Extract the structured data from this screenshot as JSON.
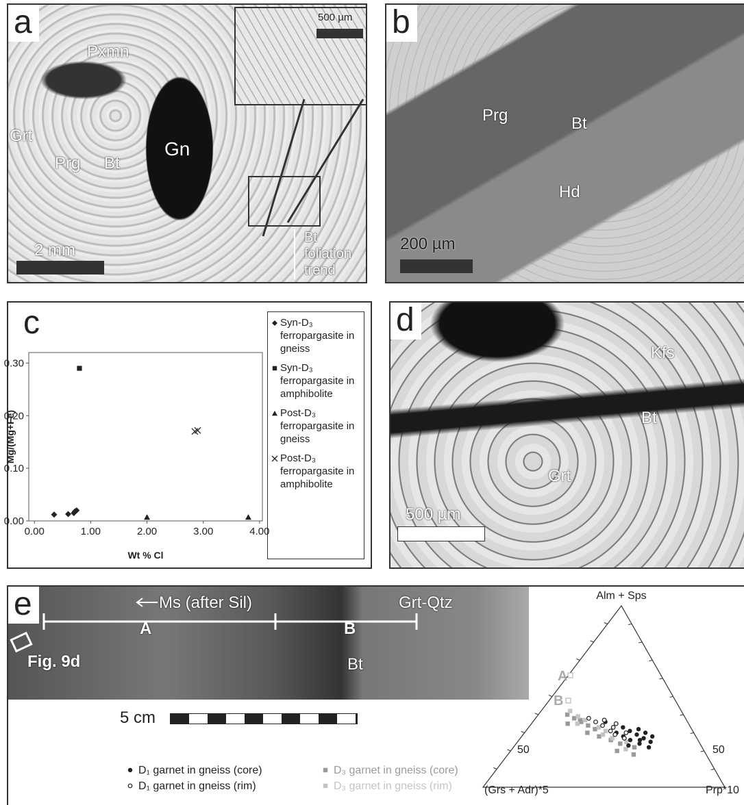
{
  "panels": {
    "a": {
      "letter": "a",
      "labels": [
        "Pxmn",
        "Grt",
        "Prg",
        "Bt",
        "Gn",
        "500 µm",
        "2 mm",
        "Bt foliation trend"
      ]
    },
    "b": {
      "letter": "b",
      "labels": [
        "Prg",
        "Bt",
        "Hd",
        "200 µm"
      ]
    },
    "c": {
      "letter": "c"
    },
    "d": {
      "letter": "d",
      "labels": [
        "Kfs",
        "Bt",
        "Grt",
        "500 µm"
      ]
    },
    "e": {
      "letter": "e",
      "labels": [
        "Ms (after Sil)",
        "A",
        "B",
        "Grt-Qtz",
        "Fig. 9d",
        "Bt",
        "5 cm"
      ]
    }
  },
  "chart_data": [
    {
      "type": "scatter",
      "x_label": "Wt % Cl",
      "y_label": "Mg/(Mg+Fe)",
      "xlim": [
        -0.1,
        4.05
      ],
      "ylim": [
        0,
        0.32
      ],
      "xticks": [
        {
          "value": 0,
          "label": "0.00"
        },
        {
          "value": 1,
          "label": "1.00"
        },
        {
          "value": 2,
          "label": "2.00"
        },
        {
          "value": 3,
          "label": "3.00"
        },
        {
          "value": 4,
          "label": "4.00"
        }
      ],
      "yticks": [
        {
          "value": 0,
          "label": "0.00"
        },
        {
          "value": 0.1,
          "label": "0.10"
        },
        {
          "value": 0.2,
          "label": "0.20"
        },
        {
          "value": 0.3,
          "label": "0.30"
        }
      ],
      "series": [
        {
          "name": "Syn-D₃ ferropargasite in gneiss",
          "marker": "diamond",
          "color": "#222222",
          "x": [
            0.35,
            0.6,
            0.7,
            0.75,
            0.72
          ],
          "values": [
            0.012,
            0.013,
            0.015,
            0.02,
            0.018
          ]
        },
        {
          "name": "Syn-D₃ ferropargasite in amphibolite",
          "marker": "square",
          "color": "#222222",
          "x": [
            0.8
          ],
          "values": [
            0.29
          ]
        },
        {
          "name": "Post-D₃ ferropargasite in gneiss",
          "marker": "triangle",
          "color": "#222222",
          "x": [
            2.0,
            3.8
          ],
          "values": [
            0.007,
            0.007
          ]
        },
        {
          "name": "Post-D₃ ferropargasite in amphibolite",
          "marker": "cross",
          "color": "#222222",
          "x": [
            2.85,
            2.9
          ],
          "values": [
            0.17,
            0.172
          ]
        }
      ]
    },
    {
      "type": "ternary",
      "top_label": "Alm + Sps",
      "left_label": "(Grs + Adr)*5",
      "right_label": "Prp*10",
      "tick_labels": [
        "50",
        "50"
      ],
      "point_labels": [
        "A",
        "B"
      ],
      "series": [
        {
          "name": "D₁ garnet in gneiss (core)",
          "marker": "circle",
          "color": "#222222",
          "top": [
            35,
            33,
            31,
            29,
            27,
            25,
            30,
            28,
            26,
            24,
            22,
            32,
            34,
            28,
            23,
            36,
            30,
            26
          ],
          "left": [
            30,
            28,
            26,
            24,
            22,
            20,
            32,
            30,
            28,
            25,
            22,
            22,
            36,
            18,
            30,
            34,
            20,
            24
          ]
        },
        {
          "name": "D₁ garnet in gneiss (rim)",
          "marker": "open-circle",
          "color": "#222222",
          "top": [
            38,
            36,
            34,
            33,
            31,
            29,
            37,
            35,
            27,
            30
          ],
          "left": [
            40,
            38,
            36,
            32,
            34,
            33,
            34,
            30,
            30,
            28
          ]
        },
        {
          "name": "D₃ garnet in gneiss (core)",
          "marker": "square",
          "color": "#9a9a9a",
          "top": [
            40,
            38,
            36,
            34,
            32,
            30,
            28,
            26,
            24,
            20,
            18,
            35,
            37,
            22
          ],
          "left": [
            48,
            46,
            44,
            42,
            40,
            44,
            40,
            36,
            33,
            36,
            30,
            50,
            44,
            28
          ]
        },
        {
          "name": "D₃ garnet in gneiss (rim)",
          "marker": "square",
          "color": "#c4c4c4",
          "top": [
            42,
            39,
            37,
            35,
            33,
            31,
            27,
            25,
            21,
            29
          ],
          "left": [
            46,
            44,
            42,
            46,
            38,
            36,
            35,
            30,
            32,
            38
          ]
        }
      ]
    }
  ]
}
